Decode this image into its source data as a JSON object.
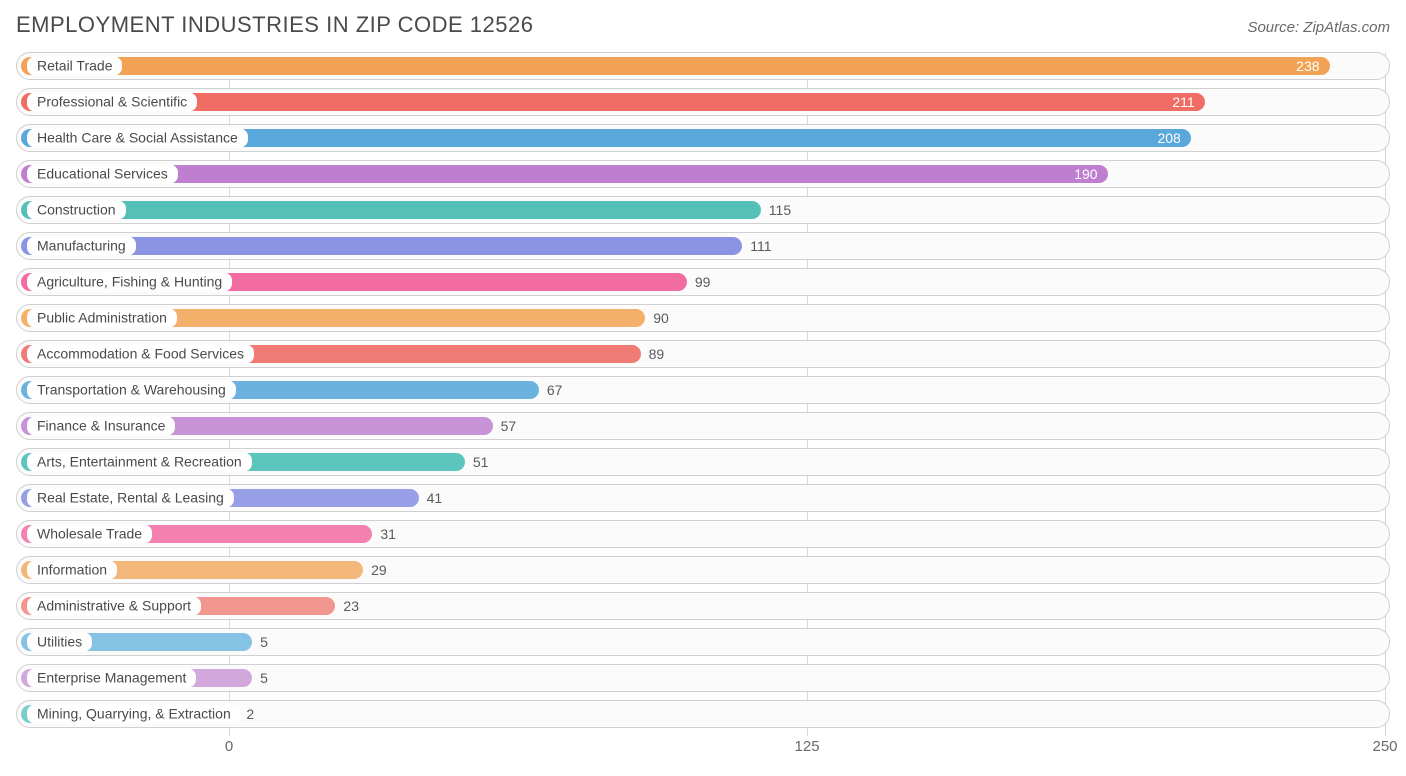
{
  "title": "EMPLOYMENT INDUSTRIES IN ZIP CODE 12526",
  "source": "Source: ZipAtlas.com",
  "chart": {
    "type": "bar-horizontal",
    "x_min": 0,
    "x_max": 250,
    "x_ticks": [
      0,
      125,
      250
    ],
    "bar_origin_value": -45,
    "track_border_color": "#d0d0d0",
    "track_bg_color": "#fbfbfb",
    "grid_color": "#d8d8d8",
    "background_color": "#ffffff",
    "title_color": "#4a4a4a",
    "title_fontsize": 22,
    "axis_label_color": "#6a6a6a",
    "axis_label_fontsize": 15,
    "bar_label_fontsize": 14,
    "value_inside_color": "#ffffff",
    "value_outside_color": "#5a5a5a",
    "value_inside_threshold": 130,
    "bars": [
      {
        "label": "Retail Trade",
        "value": 238,
        "color": "#f2a254"
      },
      {
        "label": "Professional & Scientific",
        "value": 211,
        "color": "#ef6d64"
      },
      {
        "label": "Health Care & Social Assistance",
        "value": 208,
        "color": "#5aa7db"
      },
      {
        "label": "Educational Services",
        "value": 190,
        "color": "#c07ed1"
      },
      {
        "label": "Construction",
        "value": 115,
        "color": "#55c0b8"
      },
      {
        "label": "Manufacturing",
        "value": 111,
        "color": "#8a94e3"
      },
      {
        "label": "Agriculture, Fishing & Hunting",
        "value": 99,
        "color": "#f26ca2"
      },
      {
        "label": "Public Administration",
        "value": 90,
        "color": "#f4b06a"
      },
      {
        "label": "Accommodation & Food Services",
        "value": 89,
        "color": "#ef7b74"
      },
      {
        "label": "Transportation & Warehousing",
        "value": 67,
        "color": "#6cb2de"
      },
      {
        "label": "Finance & Insurance",
        "value": 57,
        "color": "#c892d6"
      },
      {
        "label": "Arts, Entertainment & Recreation",
        "value": 51,
        "color": "#5cc6be"
      },
      {
        "label": "Real Estate, Rental & Leasing",
        "value": 41,
        "color": "#97a0e6"
      },
      {
        "label": "Wholesale Trade",
        "value": 31,
        "color": "#f481b0"
      },
      {
        "label": "Information",
        "value": 29,
        "color": "#f4b77a"
      },
      {
        "label": "Administrative & Support",
        "value": 23,
        "color": "#f19790"
      },
      {
        "label": "Utilities",
        "value": 5,
        "color": "#85c2e4"
      },
      {
        "label": "Enterprise Management",
        "value": 5,
        "color": "#d1a7dc"
      },
      {
        "label": "Mining, Quarrying, & Extraction",
        "value": 2,
        "color": "#78cfc8"
      }
    ]
  }
}
